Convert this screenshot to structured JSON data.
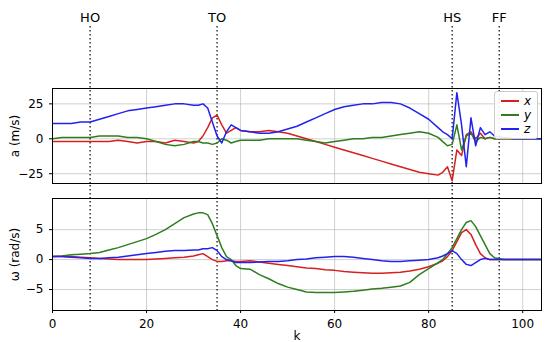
{
  "chart_data": [
    {
      "type": "line",
      "x": [
        0,
        2,
        4,
        6,
        8,
        10,
        12,
        14,
        16,
        18,
        20,
        22,
        24,
        26,
        28,
        30,
        31,
        32,
        33,
        34,
        35,
        36,
        37,
        38,
        39,
        40,
        42,
        44,
        46,
        48,
        50,
        52,
        54,
        56,
        58,
        60,
        62,
        64,
        66,
        68,
        70,
        72,
        74,
        76,
        78,
        80,
        82,
        83,
        84,
        85,
        86,
        87,
        88,
        89,
        90,
        91,
        92,
        93,
        94,
        96,
        98,
        100,
        102,
        104
      ],
      "xlim": [
        0,
        104
      ],
      "xticks": [
        0,
        20,
        40,
        60,
        80,
        100
      ],
      "ylim": [
        -32,
        36
      ],
      "yticks": [
        -25,
        0,
        25
      ],
      "ylabel": "a (m/s)",
      "grid": true,
      "legend": "upper right",
      "tick_labels": "y",
      "annotations": [
        {
          "text": "HO",
          "x": 8
        },
        {
          "text": "TO",
          "x": 35
        },
        {
          "text": "HS",
          "x": 85
        },
        {
          "text": "FF",
          "x": 95
        }
      ],
      "series": [
        {
          "name": "x",
          "color": "#d62020",
          "values": [
            -2,
            -2,
            -2,
            -2,
            -2,
            -2,
            -2,
            -1,
            -2,
            -3,
            -2,
            -2,
            -3,
            -1,
            -2,
            -3,
            -2,
            2,
            8,
            15,
            17,
            10,
            4,
            6,
            8,
            6,
            5,
            5,
            6,
            5,
            4,
            2,
            0,
            -2,
            -4,
            -6,
            -8,
            -10,
            -12,
            -14,
            -16,
            -18,
            -20,
            -22,
            -24,
            -25,
            -26,
            -24,
            -20,
            -30,
            -8,
            -12,
            3,
            5,
            0,
            4,
            0,
            1,
            0,
            0,
            0,
            0,
            0,
            0
          ]
        },
        {
          "name": "y",
          "color": "#2e7d1e",
          "values": [
            0,
            1,
            1,
            1,
            1,
            2,
            2,
            2,
            1,
            1,
            0,
            -2,
            -4,
            -5,
            -4,
            -2,
            -2,
            -3,
            -3,
            -4,
            -3,
            0,
            -1,
            -3,
            -2,
            -1,
            -1,
            -1,
            0,
            0,
            0,
            0,
            -1,
            -2,
            -3,
            -2,
            -1,
            0,
            0,
            1,
            1,
            2,
            3,
            4,
            5,
            4,
            1,
            -2,
            -5,
            -4,
            10,
            -8,
            2,
            4,
            -2,
            1,
            0,
            1,
            0,
            0,
            0,
            0,
            0,
            0
          ]
        },
        {
          "name": "z",
          "color": "#2222ee",
          "values": [
            11,
            11,
            11,
            12,
            12,
            14,
            16,
            18,
            20,
            21,
            22,
            23,
            24,
            25,
            25,
            24,
            24,
            25,
            22,
            12,
            2,
            -3,
            5,
            10,
            8,
            6,
            5,
            4,
            4,
            5,
            7,
            9,
            12,
            15,
            18,
            21,
            23,
            24,
            25,
            25,
            26,
            26,
            25,
            22,
            18,
            14,
            8,
            5,
            3,
            0,
            33,
            10,
            -20,
            15,
            -5,
            8,
            3,
            5,
            2,
            1,
            0,
            0,
            0,
            0
          ]
        }
      ]
    },
    {
      "type": "line",
      "x": [
        0,
        2,
        4,
        6,
        8,
        10,
        12,
        14,
        16,
        18,
        20,
        22,
        24,
        26,
        28,
        30,
        31,
        32,
        33,
        34,
        35,
        36,
        37,
        38,
        39,
        40,
        42,
        44,
        46,
        48,
        50,
        52,
        54,
        56,
        58,
        60,
        62,
        64,
        66,
        68,
        70,
        72,
        74,
        76,
        78,
        80,
        82,
        83,
        84,
        85,
        86,
        87,
        88,
        89,
        90,
        91,
        92,
        93,
        94,
        96,
        98,
        100,
        102,
        104
      ],
      "xlim": [
        0,
        104
      ],
      "xticks": [
        0,
        20,
        40,
        60,
        80,
        100
      ],
      "ylim": [
        -8.5,
        10.2
      ],
      "yticks": [
        -5,
        0,
        5
      ],
      "xlabel": "k",
      "ylabel": "ω (rad/s)",
      "grid": true,
      "tick_labels": true,
      "vlines": [
        8,
        35,
        85,
        95
      ],
      "series": [
        {
          "name": "x",
          "color": "#d62020",
          "values": [
            0.5,
            0.5,
            0.5,
            0.4,
            0.3,
            0.2,
            0.1,
            0,
            0,
            0,
            0,
            0.1,
            0.2,
            0.3,
            0.4,
            0.6,
            0.8,
            1,
            0.5,
            0,
            -0.3,
            -0.3,
            -0.2,
            -0.2,
            -0.3,
            -0.3,
            -0.2,
            -0.4,
            -0.6,
            -0.8,
            -1,
            -1.2,
            -1.4,
            -1.5,
            -1.7,
            -1.8,
            -2,
            -2.1,
            -2.2,
            -2.3,
            -2.3,
            -2.2,
            -2.1,
            -1.9,
            -1.6,
            -1.2,
            -0.6,
            -0.2,
            0.5,
            1.5,
            3,
            4.5,
            5,
            4.2,
            2.5,
            1,
            0.3,
            0,
            0,
            0,
            0,
            0,
            0,
            0
          ]
        },
        {
          "name": "y",
          "color": "#2e7d1e",
          "values": [
            0.5,
            0.6,
            0.8,
            0.9,
            1,
            1.2,
            1.6,
            2,
            2.5,
            3,
            3.5,
            4.2,
            5,
            6,
            7,
            7.6,
            7.8,
            7.8,
            7.5,
            6,
            4,
            2,
            0.5,
            0,
            -1,
            -1.5,
            -1.6,
            -2.5,
            -3.2,
            -4,
            -4.6,
            -5,
            -5.4,
            -5.5,
            -5.5,
            -5.5,
            -5.4,
            -5.3,
            -5.1,
            -4.9,
            -4.8,
            -4.6,
            -4.4,
            -3.8,
            -2.5,
            -1.5,
            -0.5,
            0,
            1,
            2,
            3.5,
            5,
            6.2,
            6.5,
            5.5,
            4,
            2.5,
            1,
            0.3,
            0,
            0,
            0,
            0,
            0
          ]
        },
        {
          "name": "z",
          "color": "#2222ee",
          "values": [
            0.5,
            0.5,
            0.4,
            0.3,
            0.2,
            0.2,
            0.3,
            0.4,
            0.6,
            0.8,
            1,
            1.2,
            1.4,
            1.5,
            1.5,
            1.6,
            1.6,
            1.8,
            1.8,
            2,
            1.5,
            0.5,
            0,
            -0.2,
            -0.5,
            -0.5,
            -0.5,
            -0.4,
            -0.3,
            -0.3,
            -0.2,
            0,
            0.1,
            0.3,
            0.4,
            0.5,
            0.5,
            0.4,
            0.2,
            0,
            -0.2,
            -0.3,
            -0.3,
            -0.2,
            -0.1,
            0,
            0.3,
            0.6,
            1,
            1.5,
            1,
            0,
            -0.8,
            -1,
            -0.5,
            0,
            0.2,
            0,
            0,
            0,
            0,
            0,
            0,
            0
          ]
        }
      ]
    }
  ]
}
